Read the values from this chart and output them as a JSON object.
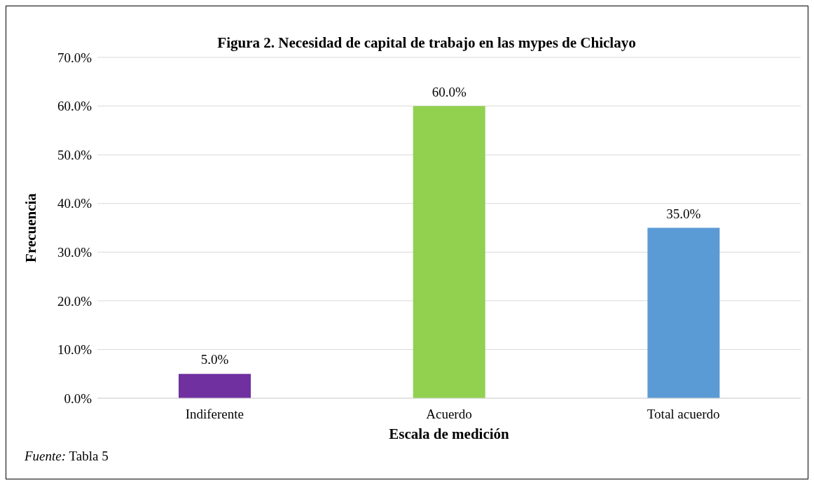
{
  "chart_data": {
    "type": "bar",
    "title": "Figura 2. Necesidad de capital de trabajo en las mypes de Chiclayo",
    "xlabel": "Escala de medición",
    "ylabel": "Frecuencia",
    "categories": [
      "Indiferente",
      "Acuerdo",
      "Total acuerdo"
    ],
    "values": [
      5.0,
      60.0,
      35.0
    ],
    "colors": [
      "#7030a0",
      "#92d050",
      "#5b9bd5"
    ],
    "value_labels": [
      "5.0%",
      "60.0%",
      "35.0%"
    ],
    "ylim": [
      0,
      70
    ],
    "yticks": [
      {
        "value": 0,
        "label": "0.0%"
      },
      {
        "value": 10,
        "label": "10.0%"
      },
      {
        "value": 20,
        "label": "20.0%"
      },
      {
        "value": 30,
        "label": "30.0%"
      },
      {
        "value": 40,
        "label": "40.0%"
      },
      {
        "value": 50,
        "label": "50.0%"
      },
      {
        "value": 60,
        "label": "60.0%"
      },
      {
        "value": 70,
        "label": "70.0%"
      }
    ],
    "grid": "y",
    "annotations": [
      "Fuente: Tabla 5"
    ]
  }
}
